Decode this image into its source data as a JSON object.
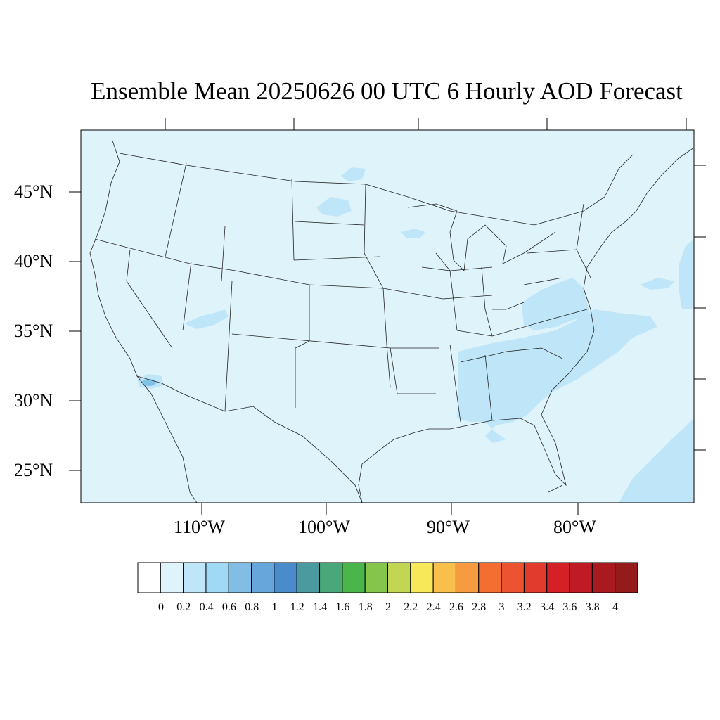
{
  "title": "Ensemble Mean 20250626 00 UTC 6 Hourly AOD Forecast",
  "map": {
    "background_fill": "#dff3fb",
    "frame_color": "#000000",
    "lat_labels": [
      "45°N",
      "40°N",
      "35°N",
      "30°N",
      "25°N"
    ],
    "lon_labels": [
      "110°W",
      "100°W",
      "90°W",
      "80°W"
    ]
  },
  "field_patches": [
    {
      "level": "0.2-0.4",
      "color": "#bfe6f8",
      "region": "southeast-us"
    },
    {
      "level": "0.2-0.4",
      "color": "#bfe6f8",
      "region": "atlantic-southeast"
    },
    {
      "level": "0.2-0.4",
      "color": "#bfe6f8",
      "region": "atlantic-east"
    },
    {
      "level": "0.2-0.4",
      "color": "#bfe6f8",
      "region": "north-dakota"
    },
    {
      "level": "0.2-0.4",
      "color": "#bfe6f8",
      "region": "utah-arizona"
    },
    {
      "level": "0.6-1.0",
      "color": "#7fc2e8",
      "region": "gulf-of-california"
    }
  ],
  "colorbar": {
    "colors": [
      "#ffffff",
      "#dff3fb",
      "#bfe6f8",
      "#a0d9f4",
      "#82bde6",
      "#67a6da",
      "#4a8bcb",
      "#4a9b9f",
      "#4aa77a",
      "#4ab54a",
      "#86c54c",
      "#c3d654",
      "#f7e85a",
      "#f7c04c",
      "#f79b40",
      "#f46d31",
      "#ec5330",
      "#e03b2c",
      "#d52028",
      "#c01b24",
      "#a91a20",
      "#941a1c"
    ],
    "tick_labels": [
      "0",
      "0.2",
      "0.4",
      "0.6",
      "0.8",
      "1",
      "1.2",
      "1.4",
      "1.6",
      "1.8",
      "2",
      "2.2",
      "2.4",
      "2.6",
      "2.8",
      "3",
      "3.2",
      "3.4",
      "3.6",
      "3.8",
      "4"
    ]
  }
}
